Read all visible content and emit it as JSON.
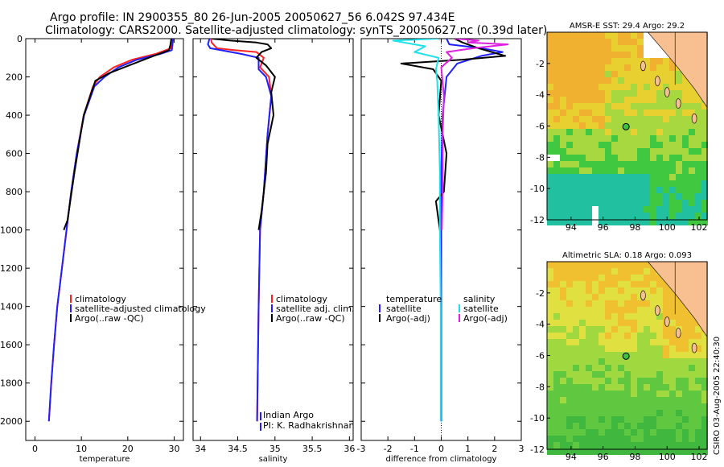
{
  "title": {
    "line1": "Argo profile: IN 2900355_80 26-Jun-2005 20050627_56 6.042S 97.434E",
    "line2": "Climatology: CARS2000. Satellite-adjusted climatology: synTS_20050627.nc (0.39d later)"
  },
  "side_stamp": "CSIRO 03-Aug-2005 22:40:30",
  "colors": {
    "clim": "#ff2020",
    "sat": "#2020ff",
    "argo": "#000000",
    "sal_sat": "#20e0e8",
    "sal_argo": "#e020e0"
  },
  "chart_data": [
    {
      "id": "temperature",
      "type": "line",
      "xlabel": "temperature",
      "xlim": [
        -2,
        32
      ],
      "ylim": [
        2100,
        0
      ],
      "xticks": [
        0,
        10,
        20,
        30
      ],
      "xtick_labels": [
        "0",
        "10",
        "20",
        "30"
      ],
      "yticks": [
        0,
        200,
        400,
        600,
        800,
        1000,
        1200,
        1400,
        1600,
        1800,
        2000
      ],
      "ytick_labels": [
        "0",
        "200",
        "400",
        "600",
        "800",
        "1000",
        "1200",
        "1400",
        "1600",
        "1800",
        "2000"
      ],
      "legend": [
        "climatology",
        "satellite-adjusted climatology",
        "Argo(..raw -QC)"
      ],
      "series": [
        {
          "name": "climatology",
          "color": "#ff2020",
          "points": [
            [
              29.6,
              0
            ],
            [
              29.3,
              50
            ],
            [
              26,
              80
            ],
            [
              21,
              110
            ],
            [
              17,
              150
            ],
            [
              14,
              200
            ],
            [
              12.5,
              250
            ],
            [
              10.5,
              400
            ],
            [
              9,
              600
            ],
            [
              7.8,
              800
            ],
            [
              6.8,
              1000
            ],
            [
              5.8,
              1200
            ],
            [
              4.8,
              1400
            ],
            [
              4.1,
              1600
            ],
            [
              3.5,
              1800
            ],
            [
              3,
              2000
            ]
          ]
        },
        {
          "name": "satellite-adjusted climatology",
          "color": "#2020ff",
          "points": [
            [
              29.8,
              0
            ],
            [
              29.5,
              60
            ],
            [
              27,
              80
            ],
            [
              22,
              110
            ],
            [
              18,
              150
            ],
            [
              15,
              200
            ],
            [
              12.8,
              250
            ],
            [
              10.6,
              400
            ],
            [
              9,
              600
            ],
            [
              7.8,
              800
            ],
            [
              6.8,
              1000
            ],
            [
              5.8,
              1200
            ],
            [
              4.8,
              1400
            ],
            [
              4.1,
              1600
            ],
            [
              3.5,
              1800
            ],
            [
              3,
              2000
            ]
          ]
        },
        {
          "name": "Argo(..raw -QC)",
          "color": "#000000",
          "points": [
            [
              29.4,
              0
            ],
            [
              29.2,
              30
            ],
            [
              28.9,
              60
            ],
            [
              24.5,
              100
            ],
            [
              16,
              180
            ],
            [
              13,
              220
            ],
            [
              10.5,
              400
            ],
            [
              8.5,
              700
            ],
            [
              7,
              950
            ],
            [
              6.2,
              1000
            ]
          ]
        }
      ]
    },
    {
      "id": "salinity",
      "type": "line",
      "xlabel": "salinity",
      "xlim": [
        33.9,
        36.05
      ],
      "ylim": [
        2100,
        0
      ],
      "xticks": [
        34,
        34.5,
        35,
        35.5,
        36
      ],
      "xtick_labels": [
        "34",
        "34.5",
        "35",
        "35.5",
        "36"
      ],
      "legend": [
        "climatology",
        "satellite adj. clim.",
        "Argo(..raw -QC)"
      ],
      "annotation": [
        "Indian Argo",
        "PI: K. Radhakrishnan"
      ],
      "series": [
        {
          "name": "climatology",
          "color": "#ff2020",
          "points": [
            [
              34.14,
              0
            ],
            [
              34.15,
              20
            ],
            [
              34.22,
              50
            ],
            [
              34.45,
              60
            ],
            [
              34.75,
              70
            ],
            [
              34.85,
              100
            ],
            [
              34.8,
              150
            ],
            [
              34.92,
              200
            ],
            [
              34.95,
              300
            ],
            [
              34.9,
              500
            ],
            [
              34.85,
              800
            ],
            [
              34.8,
              1000
            ],
            [
              34.78,
              1400
            ],
            [
              34.76,
              2000
            ]
          ]
        },
        {
          "name": "satellite adj. clim.",
          "color": "#2020ff",
          "points": [
            [
              34.12,
              0
            ],
            [
              34.1,
              30
            ],
            [
              34.13,
              50
            ],
            [
              34.55,
              80
            ],
            [
              34.78,
              100
            ],
            [
              34.78,
              160
            ],
            [
              34.88,
              200
            ],
            [
              34.95,
              300
            ],
            [
              34.9,
              500
            ],
            [
              34.85,
              800
            ],
            [
              34.8,
              1000
            ],
            [
              34.78,
              1400
            ],
            [
              34.76,
              2000
            ]
          ]
        },
        {
          "name": "Argo(..raw -QC)",
          "color": "#000000",
          "points": [
            [
              34.15,
              0
            ],
            [
              34.4,
              10
            ],
            [
              34.75,
              20
            ],
            [
              34.9,
              30
            ],
            [
              34.95,
              50
            ],
            [
              34.82,
              70
            ],
            [
              34.75,
              100
            ],
            [
              34.88,
              140
            ],
            [
              35,
              200
            ],
            [
              34.95,
              280
            ],
            [
              34.98,
              400
            ],
            [
              34.9,
              550
            ],
            [
              34.88,
              700
            ],
            [
              34.82,
              900
            ],
            [
              34.78,
              1000
            ]
          ]
        }
      ]
    },
    {
      "id": "difference",
      "type": "line",
      "xlabel": "difference from climatology",
      "xlim": [
        -3,
        3
      ],
      "ylim": [
        2100,
        0
      ],
      "xticks": [
        -3,
        -2,
        -1,
        0,
        1,
        2,
        3
      ],
      "xtick_labels": [
        "-3",
        "-2",
        "-1",
        "0",
        "1",
        "2",
        "3"
      ],
      "legend": [
        "temperature",
        "satellite",
        "Argo(-adj)",
        "salinity",
        "satellite",
        "Argo(-adj)"
      ],
      "series": [
        {
          "name": "temperature satellite",
          "color": "#2020ff",
          "points": [
            [
              0.2,
              0
            ],
            [
              0.3,
              30
            ],
            [
              1.5,
              50
            ],
            [
              2.3,
              70
            ],
            [
              1.5,
              90
            ],
            [
              0.6,
              130
            ],
            [
              0.2,
              200
            ],
            [
              0.05,
              400
            ],
            [
              0,
              700
            ],
            [
              0,
              2000
            ]
          ]
        },
        {
          "name": "temperature Argo(-adj)",
          "color": "#000000",
          "points": [
            [
              0.5,
              0
            ],
            [
              0.8,
              20
            ],
            [
              1.4,
              50
            ],
            [
              2.4,
              90
            ],
            [
              0.8,
              110
            ],
            [
              -1.5,
              130
            ],
            [
              -0.3,
              160
            ],
            [
              0,
              220
            ],
            [
              -0.1,
              400
            ],
            [
              0.2,
              600
            ],
            [
              0.1,
              800
            ],
            [
              -0.2,
              850
            ],
            [
              -0.05,
              1000
            ]
          ]
        },
        {
          "name": "salinity satellite",
          "color": "#20e0e8",
          "points": [
            [
              -0.1,
              0
            ],
            [
              -1.8,
              10
            ],
            [
              -0.6,
              40
            ],
            [
              -1,
              70
            ],
            [
              -0.1,
              100
            ],
            [
              -0.2,
              160
            ],
            [
              -0.15,
              220
            ],
            [
              -0.1,
              400
            ],
            [
              -0.05,
              700
            ],
            [
              -0.05,
              1000
            ],
            [
              -0.02,
              1400
            ],
            [
              -0.02,
              2000
            ]
          ]
        },
        {
          "name": "salinity Argo(-adj)",
          "color": "#e020e0",
          "points": [
            [
              0.5,
              0
            ],
            [
              1.4,
              10
            ],
            [
              1,
              20
            ],
            [
              2.5,
              30
            ],
            [
              1.2,
              50
            ],
            [
              0.2,
              70
            ],
            [
              0.4,
              100
            ],
            [
              0,
              150
            ],
            [
              0.1,
              300
            ],
            [
              0.05,
              500
            ],
            [
              0.05,
              800
            ],
            [
              0.02,
              1000
            ]
          ]
        }
      ]
    },
    {
      "id": "amsr_sst_map",
      "type": "heatmap",
      "title": "AMSR-E SST: 29.4 Argo: 29.2",
      "xlim": [
        92.5,
        102.5
      ],
      "ylim": [
        -12,
        0
      ],
      "xticks": [
        94,
        96,
        98,
        100,
        102
      ],
      "xtick_labels": [
        "94",
        "96",
        "98",
        "100",
        "102"
      ],
      "yticks": [
        -2,
        -4,
        -6,
        -8,
        -10,
        -12
      ],
      "ytick_labels": [
        "-2",
        "-4",
        "-6",
        "-8",
        "-10",
        "-12"
      ],
      "marker": [
        97.434,
        -6.042
      ]
    },
    {
      "id": "altimetric_sla_map",
      "type": "heatmap",
      "title": "Altimetric SLA: 0.18 Argo: 0.093",
      "xlim": [
        92.5,
        102.5
      ],
      "ylim": [
        -12,
        0
      ],
      "xticks": [
        94,
        96,
        98,
        100,
        102
      ],
      "xtick_labels": [
        "94",
        "96",
        "98",
        "100",
        "102"
      ],
      "yticks": [
        -2,
        -4,
        -6,
        -8,
        -10,
        -12
      ],
      "ytick_labels": [
        "-2",
        "-4",
        "-6",
        "-8",
        "-10",
        "-12"
      ],
      "marker": [
        97.434,
        -6.042
      ]
    }
  ]
}
